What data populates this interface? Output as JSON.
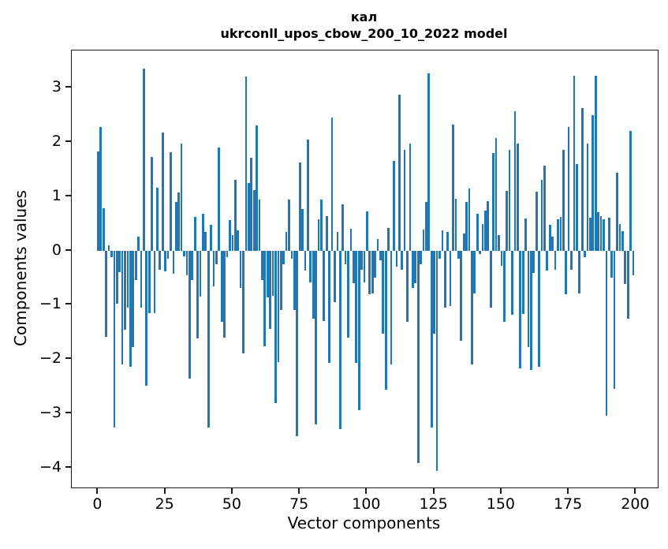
{
  "title": {
    "line1": "кал",
    "line2": "ukrconll_upos_cbow_200_10_2022 model"
  },
  "axes": {
    "x_label": "Vector components",
    "y_label": "Components values",
    "x_tick_labels": [
      "0",
      "25",
      "50",
      "75",
      "100",
      "125",
      "150",
      "175",
      "200"
    ],
    "y_tick_labels": [
      "3",
      "2",
      "1",
      "0",
      "−1",
      "−2",
      "−3",
      "−4"
    ]
  },
  "colors": {
    "bar": "#1f77b4",
    "text": "#000000",
    "frame": "#1a1a1a",
    "background": "#ffffff"
  },
  "chart_data": {
    "type": "bar",
    "title": "кал\nukrconll_upos_cbow_200_10_2022 model",
    "xlabel": "Vector components",
    "ylabel": "Components values",
    "legend": "none",
    "grid": false,
    "bar_color": "#1f77b4",
    "bar_width": 0.8,
    "x_start": 0,
    "x_step": 1,
    "x_ticks": [
      0,
      25,
      50,
      75,
      100,
      125,
      150,
      175,
      200
    ],
    "y_ticks": [
      3,
      2,
      1,
      0,
      -1,
      -2,
      -3,
      -4
    ],
    "xlim": [
      -9.8,
      208.1
    ],
    "ylim": [
      -4.37,
      3.69
    ],
    "values": [
      1.83,
      2.28,
      0.78,
      -1.59,
      0.1,
      -0.12,
      -3.26,
      -0.98,
      -0.4,
      -2.1,
      -1.46,
      -1.05,
      -2.15,
      -1.78,
      -0.55,
      0.26,
      -1.05,
      3.35,
      -2.5,
      -1.15,
      1.72,
      -1.15,
      1.16,
      -0.35,
      2.18,
      -0.38,
      -0.15,
      1.81,
      -0.43,
      0.9,
      1.07,
      1.98,
      -0.11,
      -0.45,
      -2.36,
      -0.54,
      0.62,
      -1.62,
      -0.85,
      0.68,
      0.35,
      -3.26,
      0.47,
      -0.66,
      -0.25,
      1.9,
      -1.32,
      -1.61,
      -0.12,
      0.56,
      0.28,
      1.3,
      0.37,
      -0.69,
      -1.9,
      3.21,
      1.24,
      1.71,
      1.11,
      2.31,
      0.94,
      -0.54,
      -1.76,
      -0.86,
      -1.44,
      -0.83,
      -2.81,
      -2.05,
      -1.1,
      -0.25,
      0.34,
      0.94,
      -0.15,
      -1.1,
      -3.43,
      1.63,
      0.76,
      -0.37,
      2.04,
      -0.59,
      -1.25,
      -3.2,
      0.58,
      0.94,
      -1.3,
      0.63,
      -2.07,
      2.45,
      -0.95,
      0.35,
      -3.3,
      0.86,
      -0.25,
      -1.61,
      0.4,
      -0.6,
      -2.07,
      -2.95,
      -0.35,
      -0.59,
      0.72,
      -0.81,
      -0.79,
      -0.5,
      0.21,
      -0.18,
      -1.54,
      -2.56,
      0.42,
      -2.1,
      1.66,
      -0.3,
      2.88,
      -0.35,
      1.85,
      -1.32,
      1.97,
      -0.69,
      -0.6,
      -3.92,
      -0.25,
      0.39,
      0.9,
      3.27,
      -3.27,
      -1.54,
      -4.07,
      -0.15,
      0.37,
      -1.06,
      0.34,
      -1.03,
      2.32,
      0.96,
      -0.15,
      -1.66,
      0.31,
      0.89,
      1.15,
      -2.1,
      -0.79,
      0.68,
      -0.06,
      0.49,
      0.74,
      0.91,
      -1.05,
      1.8,
      2.08,
      0.28,
      -0.28,
      -1.32,
      1.1,
      1.85,
      -1.18,
      2.57,
      1.98,
      -2.17,
      -1.17,
      0.59,
      -1.78,
      -2.2,
      -0.41,
      1.08,
      -2.15,
      1.3,
      1.56,
      -0.37,
      0.48,
      0.26,
      -0.35,
      0.58,
      0.62,
      1.85,
      -0.81,
      2.28,
      -0.35,
      3.22,
      1.6,
      -0.79,
      2.63,
      -0.12,
      1.97,
      0.6,
      2.5,
      3.23,
      0.71,
      0.64,
      0.58,
      -3.05,
      0.6,
      -0.5,
      -2.55,
      1.43,
      0.49,
      0.36,
      -0.62,
      -1.25,
      2.2,
      -0.45
    ]
  }
}
